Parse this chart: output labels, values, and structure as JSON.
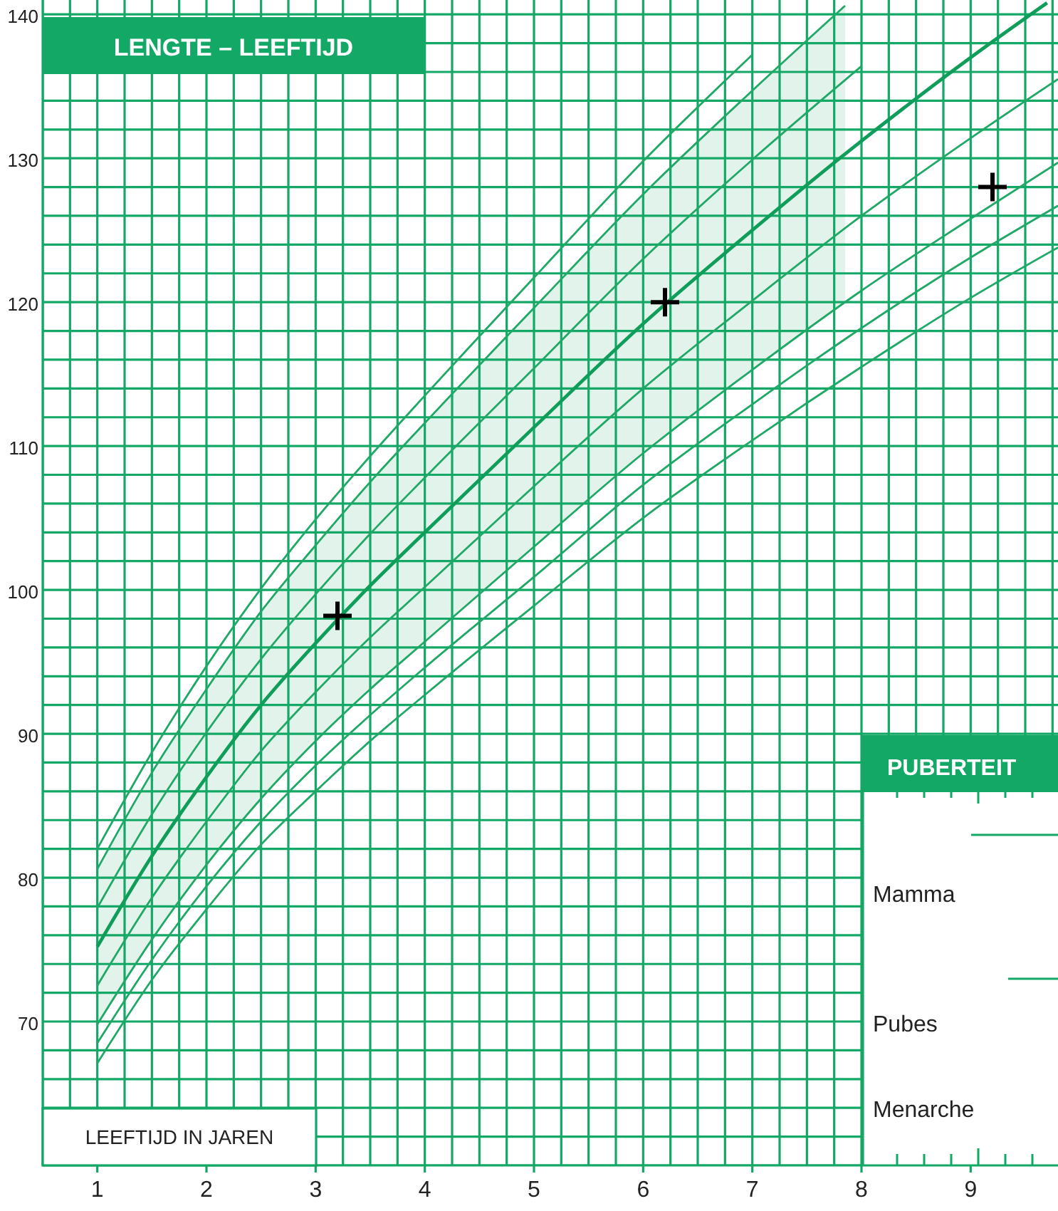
{
  "chart_data": {
    "type": "line",
    "title": "LENGTE – LEEFTIJD",
    "xlabel": "LEEFTIJD IN JAREN",
    "xlim": [
      0.5,
      9.8
    ],
    "ylim": [
      60,
      141
    ],
    "xticks": [
      1,
      2,
      3,
      4,
      5,
      6,
      7,
      8,
      9
    ],
    "yticks": [
      70,
      80,
      90,
      100,
      110,
      120,
      130,
      140
    ],
    "grid": true,
    "series": [
      {
        "color": "#1fa866",
        "x": [
          1,
          1.5,
          2,
          2.5,
          3,
          3.5,
          4,
          5,
          6,
          7
        ],
        "values": [
          82,
          88.7,
          94.7,
          100.1,
          104.9,
          109.3,
          113.5,
          121.7,
          129.8,
          137.2
        ]
      },
      {
        "color": "#1fa866",
        "x": [
          1,
          1.5,
          2,
          2.5,
          3,
          3.5,
          4,
          5,
          6,
          7,
          7.85
        ],
        "values": [
          80.6,
          87.3,
          93.1,
          98.5,
          103.1,
          107.5,
          111.6,
          119.6,
          127.5,
          134.7,
          140.6
        ]
      },
      {
        "color": "#1fa866",
        "x": [
          1,
          1.5,
          2,
          2.5,
          3,
          3.5,
          4,
          5,
          6,
          7,
          8
        ],
        "values": [
          77.9,
          84.4,
          90.1,
          95.2,
          99.7,
          103.9,
          107.8,
          115.4,
          123,
          129.9,
          136.4
        ]
      },
      {
        "color": "#0f9e5a",
        "x": [
          1,
          1.5,
          2,
          2.5,
          3,
          3.5,
          4,
          5,
          6,
          7,
          7.85,
          8,
          9,
          9.7
        ],
        "values": [
          75.2,
          81.5,
          87,
          92,
          96.3,
          100.3,
          104,
          111.3,
          118.5,
          125,
          130.3,
          131.2,
          137,
          140.8
        ],
        "lower": [
          69.8,
          75.7,
          80.9,
          85.5,
          89.5,
          93.1,
          96.4,
          103,
          109.5,
          115.3,
          120,
          null,
          null,
          null
        ],
        "upper": [
          80.6,
          87.3,
          93.1,
          98.5,
          103.1,
          107.5,
          111.6,
          119.6,
          127.5,
          134.7,
          140.6,
          null,
          null,
          null
        ]
      },
      {
        "color": "#1fa866",
        "x": [
          1,
          1.5,
          2,
          2.5,
          3,
          3.5,
          4,
          5,
          6,
          7,
          8,
          9,
          9.8
        ],
        "values": [
          72.5,
          78.6,
          83.9,
          88.8,
          92.9,
          96.7,
          100.2,
          107.2,
          114,
          120.1,
          126,
          131.4,
          135.5
        ]
      },
      {
        "color": "#1fa866",
        "x": [
          1,
          1.5,
          2,
          2.5,
          3,
          3.5,
          4,
          5,
          6,
          7,
          8,
          9,
          9.8
        ],
        "values": [
          69.8,
          75.7,
          80.9,
          85.5,
          89.5,
          93.1,
          96.4,
          103,
          109.5,
          115.3,
          120.8,
          125.8,
          129.7
        ]
      },
      {
        "color": "#1fa866",
        "x": [
          1,
          1.5,
          2,
          2.5,
          3,
          3.5,
          4,
          5,
          6,
          7,
          8,
          9,
          9.8
        ],
        "values": [
          68.5,
          74.3,
          79.4,
          83.9,
          87.8,
          91.3,
          94.6,
          100.9,
          107.3,
          112.9,
          118.2,
          123.1,
          126.7
        ]
      },
      {
        "color": "#1fa866",
        "x": [
          1,
          1.5,
          2,
          2.5,
          3,
          3.5,
          4,
          5,
          6,
          7,
          8,
          9,
          9.8
        ],
        "values": [
          67.1,
          72.9,
          77.8,
          82.3,
          86,
          89.5,
          92.7,
          98.9,
          105,
          110.4,
          115.5,
          120.3,
          123.8
        ]
      },
      {
        "type": "scatter",
        "marker": "cross",
        "color": "#000000",
        "x": [
          3.2,
          6.2,
          9.2
        ],
        "values": [
          98.2,
          120,
          128
        ]
      }
    ],
    "annotations": [
      "PUBERTEIT",
      "Mamma",
      "Pubes",
      "Menarche"
    ]
  }
}
